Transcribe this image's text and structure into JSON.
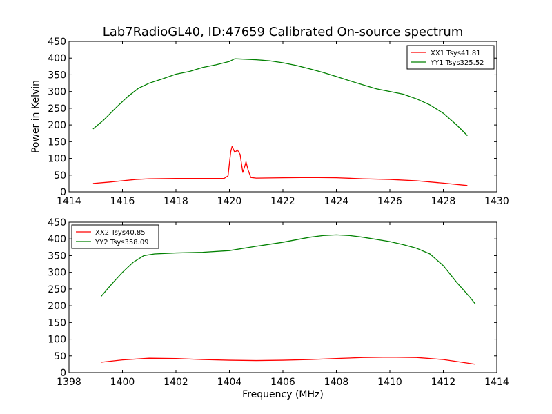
{
  "chart_data": [
    {
      "type": "line",
      "title": "Lab7RadioGL40, ID:47659 Calibrated On-source spectrum",
      "xlabel": "",
      "ylabel": "Power in Kelvin",
      "xlim": [
        1414,
        1430
      ],
      "ylim": [
        0,
        450
      ],
      "xticks": [
        1414,
        1416,
        1418,
        1420,
        1422,
        1424,
        1426,
        1428,
        1430
      ],
      "yticks": [
        0,
        50,
        100,
        150,
        200,
        250,
        300,
        350,
        400,
        450
      ],
      "grid": false,
      "legend": "top-right",
      "series": [
        {
          "name": "XX1 Tsys41.81",
          "color": "#ff0000",
          "points": [
            [
              1414.9,
              25
            ],
            [
              1415.5,
              29
            ],
            [
              1416,
              33
            ],
            [
              1416.5,
              37
            ],
            [
              1417,
              39
            ],
            [
              1418,
              40
            ],
            [
              1419,
              40
            ],
            [
              1419.8,
              40
            ],
            [
              1419.95,
              48
            ],
            [
              1420.0,
              85
            ],
            [
              1420.05,
              120
            ],
            [
              1420.1,
              136
            ],
            [
              1420.2,
              118
            ],
            [
              1420.3,
              125
            ],
            [
              1420.4,
              112
            ],
            [
              1420.5,
              58
            ],
            [
              1420.58,
              78
            ],
            [
              1420.62,
              90
            ],
            [
              1420.7,
              65
            ],
            [
              1420.8,
              43
            ],
            [
              1421,
              41
            ],
            [
              1422,
              42
            ],
            [
              1423,
              43
            ],
            [
              1424,
              42
            ],
            [
              1425,
              39
            ],
            [
              1426,
              37
            ],
            [
              1427,
              33
            ],
            [
              1428,
              26
            ],
            [
              1428.9,
              19
            ]
          ]
        },
        {
          "name": "YY1 Tsys325.52",
          "color": "#008000",
          "points": [
            [
              1414.9,
              188
            ],
            [
              1415.3,
              215
            ],
            [
              1415.8,
              255
            ],
            [
              1416.2,
              285
            ],
            [
              1416.6,
              310
            ],
            [
              1417,
              325
            ],
            [
              1417.5,
              338
            ],
            [
              1418,
              352
            ],
            [
              1418.5,
              360
            ],
            [
              1419,
              372
            ],
            [
              1419.5,
              380
            ],
            [
              1420,
              390
            ],
            [
              1420.2,
              398
            ],
            [
              1420.5,
              397
            ],
            [
              1421,
              395
            ],
            [
              1421.5,
              392
            ],
            [
              1422,
              386
            ],
            [
              1422.5,
              378
            ],
            [
              1423,
              368
            ],
            [
              1423.5,
              357
            ],
            [
              1424,
              345
            ],
            [
              1424.5,
              332
            ],
            [
              1425,
              320
            ],
            [
              1425.5,
              308
            ],
            [
              1426,
              300
            ],
            [
              1426.5,
              292
            ],
            [
              1427,
              278
            ],
            [
              1427.5,
              260
            ],
            [
              1428,
              235
            ],
            [
              1428.5,
              200
            ],
            [
              1428.9,
              168
            ]
          ]
        }
      ]
    },
    {
      "type": "line",
      "title": "",
      "xlabel": "Frequency (MHz)",
      "ylabel": "",
      "xlim": [
        1398,
        1414
      ],
      "ylim": [
        0,
        450
      ],
      "xticks": [
        1398,
        1400,
        1402,
        1404,
        1406,
        1408,
        1410,
        1412,
        1414
      ],
      "yticks": [
        0,
        50,
        100,
        150,
        200,
        250,
        300,
        350,
        400,
        450
      ],
      "grid": false,
      "legend": "top-left",
      "series": [
        {
          "name": "XX2 Tsys40.85",
          "color": "#ff0000",
          "points": [
            [
              1399.2,
              31
            ],
            [
              1400,
              38
            ],
            [
              1401,
              43
            ],
            [
              1402,
              42
            ],
            [
              1403,
              39
            ],
            [
              1404,
              37
            ],
            [
              1405,
              36
            ],
            [
              1406,
              37
            ],
            [
              1407,
              39
            ],
            [
              1408,
              42
            ],
            [
              1409,
              45
            ],
            [
              1410,
              46
            ],
            [
              1411,
              45
            ],
            [
              1412,
              39
            ],
            [
              1413.2,
              25
            ]
          ]
        },
        {
          "name": "YY2 Tsys358.09",
          "color": "#008000",
          "points": [
            [
              1399.2,
              228
            ],
            [
              1399.6,
              265
            ],
            [
              1400,
              300
            ],
            [
              1400.4,
              330
            ],
            [
              1400.8,
              350
            ],
            [
              1401.2,
              355
            ],
            [
              1402,
              358
            ],
            [
              1403,
              360
            ],
            [
              1404,
              365
            ],
            [
              1405,
              378
            ],
            [
              1406,
              390
            ],
            [
              1407,
              405
            ],
            [
              1407.5,
              410
            ],
            [
              1408,
              412
            ],
            [
              1408.5,
              410
            ],
            [
              1409,
              405
            ],
            [
              1410,
              392
            ],
            [
              1410.5,
              383
            ],
            [
              1411,
              372
            ],
            [
              1411.5,
              355
            ],
            [
              1412,
              320
            ],
            [
              1412.5,
              270
            ],
            [
              1413,
              225
            ],
            [
              1413.2,
              205
            ]
          ]
        }
      ]
    }
  ]
}
